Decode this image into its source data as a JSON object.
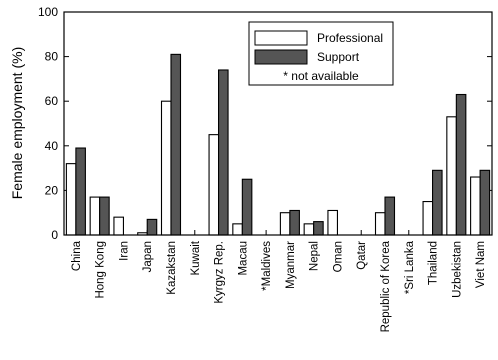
{
  "chart_data": {
    "type": "bar",
    "ylabel": "Female employment (%)",
    "xlabel": "",
    "ylim": [
      0,
      100
    ],
    "yticks": [
      0,
      20,
      40,
      60,
      80,
      100
    ],
    "grid": false,
    "legend_position": "top-center",
    "legend_note": "* not available",
    "categories": [
      "China",
      "Hong Kong",
      "Iran",
      "Japan",
      "Kazakstan",
      "Kuwait",
      "Kyrgyz Rep.",
      "Macau",
      "*Maldives",
      "Myanmar",
      "Nepal",
      "Oman",
      "Qatar",
      "Republic of Korea",
      "*Sri Lanka",
      "Thailand",
      "Uzbekistan",
      "Viet Nam"
    ],
    "series": [
      {
        "name": "Professional",
        "color": "#ffffff",
        "values": [
          32,
          17,
          8,
          1,
          60,
          null,
          45,
          5,
          null,
          10,
          5,
          11,
          null,
          10,
          null,
          15,
          53,
          26
        ]
      },
      {
        "name": "Support",
        "color": "#555555",
        "values": [
          39,
          17,
          null,
          7,
          81,
          null,
          74,
          25,
          null,
          11,
          6,
          null,
          null,
          17,
          null,
          29,
          63,
          29
        ]
      }
    ]
  }
}
